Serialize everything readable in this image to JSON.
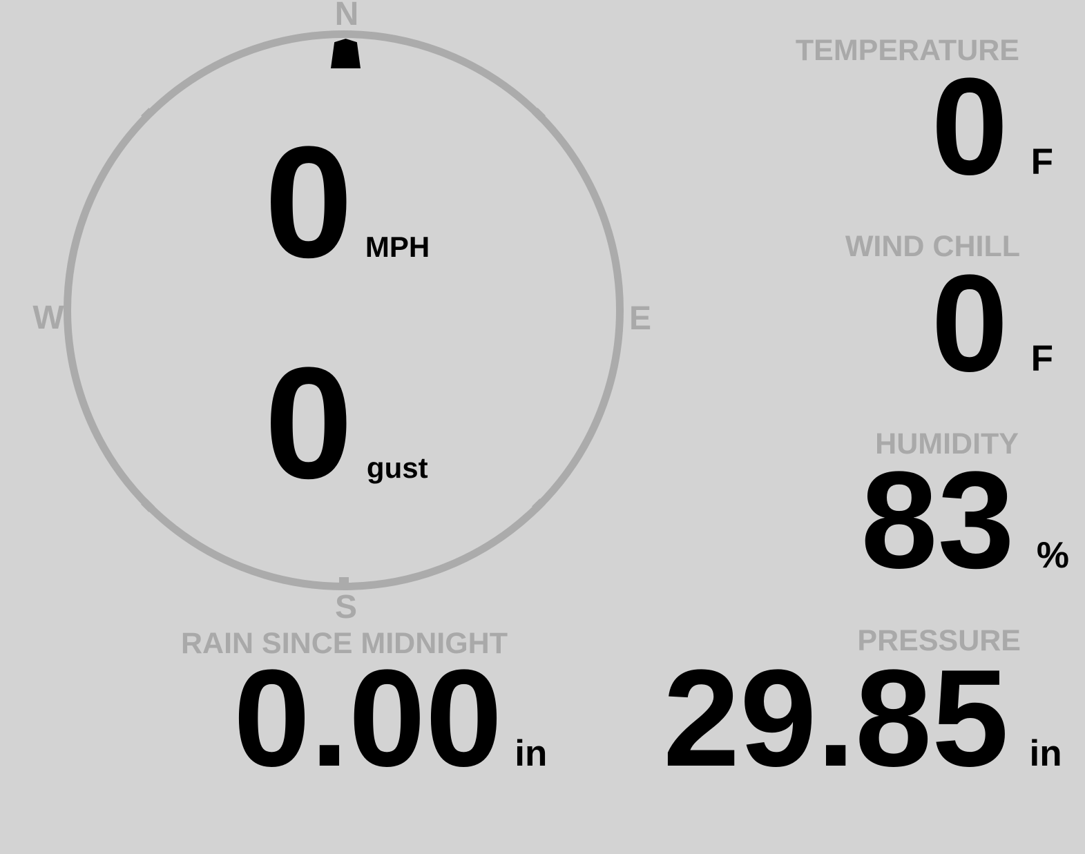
{
  "theme": {
    "background_color": "#d3d3d3",
    "muted_color": "#a9a9a9",
    "value_color": "#000000"
  },
  "compass": {
    "directions": {
      "north": "N",
      "east": "E",
      "south": "S",
      "west": "W"
    },
    "wind_direction_marker": "north",
    "wind_speed": {
      "value": "0",
      "unit": "MPH"
    },
    "wind_gust": {
      "value": "0",
      "unit": "gust"
    }
  },
  "stats": {
    "temperature": {
      "label": "TEMPERATURE",
      "value": "0",
      "unit": "F"
    },
    "wind_chill": {
      "label": "WIND CHILL",
      "value": "0",
      "unit": "F"
    },
    "humidity": {
      "label": "HUMIDITY",
      "value": "83",
      "unit": "%"
    },
    "rain_since_midnight": {
      "label": "RAIN SINCE MIDNIGHT",
      "value": "0.00",
      "unit": "in"
    },
    "pressure": {
      "label": "PRESSURE",
      "value": "29.85",
      "unit": "in"
    }
  }
}
